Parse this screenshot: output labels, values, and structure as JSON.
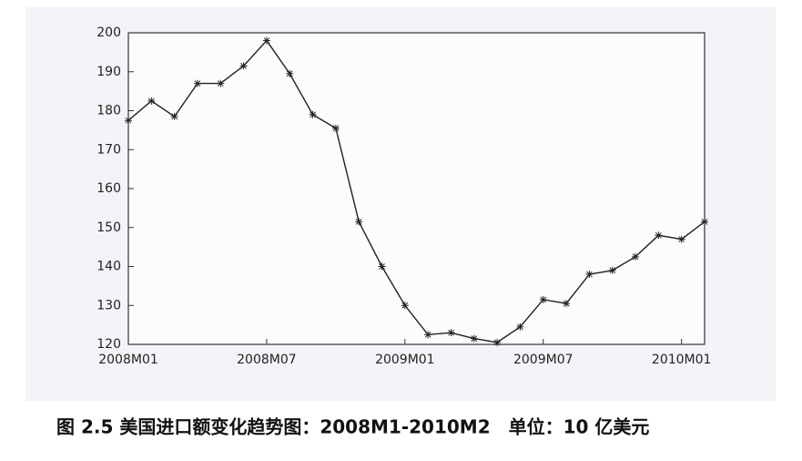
{
  "chart_data": {
    "type": "line",
    "caption": "图 2.5 美国进口额变化趋势图：2008M1-2010M2　单位：10 亿美元",
    "categories": [
      "2008M01",
      null,
      null,
      null,
      null,
      null,
      "2008M07",
      null,
      null,
      null,
      null,
      null,
      "2009M01",
      null,
      null,
      null,
      null,
      null,
      "2009M07",
      null,
      null,
      null,
      null,
      null,
      "2010M01",
      null
    ],
    "series": [
      {
        "color": "#222222",
        "values": [
          177.5,
          182.5,
          178.5,
          187,
          187,
          191.5,
          198,
          189.5,
          179,
          175.5,
          151.5,
          140,
          130,
          122.5,
          123,
          121.5,
          120.5,
          124.5,
          131.5,
          130.5,
          138,
          139,
          142.5,
          148,
          147,
          151.5
        ]
      }
    ],
    "ylim": [
      120,
      200
    ],
    "yticks": [
      120,
      130,
      140,
      150,
      160,
      170,
      180,
      190,
      200
    ],
    "grid": false
  }
}
